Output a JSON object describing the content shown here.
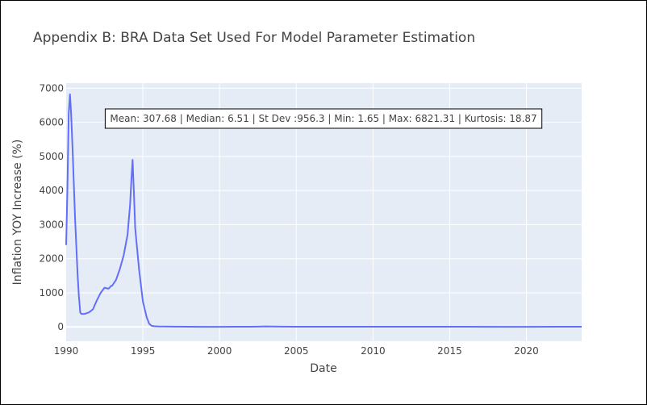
{
  "chart_data": {
    "type": "line",
    "title": "Appendix B: BRA Data Set Used For Model Parameter Estimation",
    "xlabel": "Date",
    "ylabel": "Inflation YOY Increase (%)",
    "xlim": [
      1990.0,
      2023.6
    ],
    "ylim": [
      -420,
      7150
    ],
    "x_ticks": [
      1990,
      1995,
      2000,
      2005,
      2010,
      2015,
      2020
    ],
    "y_ticks": [
      0,
      1000,
      2000,
      3000,
      4000,
      5000,
      6000,
      7000
    ],
    "grid": true,
    "colors": {
      "series": "#636efa",
      "plot_bg": "#e5ecf6",
      "grid": "#ffffff"
    },
    "annotation": "Mean: 307.68 | Median: 6.51 | St Dev :956.3 | Min: 1.65 | Max: 6821.31 | Kurtosis: 18.87",
    "series": [
      {
        "x": [
          1990.0,
          1990.08,
          1990.17,
          1990.25,
          1990.33,
          1990.42,
          1990.5,
          1990.58,
          1990.67,
          1990.75,
          1990.83,
          1990.92,
          1991.0,
          1991.08,
          1991.17,
          1991.25,
          1991.5,
          1991.75,
          1992.0,
          1992.25,
          1992.5,
          1992.75,
          1992.83,
          1992.92,
          1993.0,
          1993.25,
          1993.5,
          1993.75,
          1994.0,
          1994.17,
          1994.25,
          1994.33,
          1994.42,
          1994.5,
          1994.75,
          1995.0,
          1995.25,
          1995.42,
          1995.58,
          1995.75,
          1996.0,
          1997.0,
          1998.0,
          1999.0,
          2000.0,
          2001.0,
          2002.0,
          2002.5,
          2003.0,
          2003.5,
          2004.0,
          2005.0,
          2006.0,
          2008.0,
          2010.0,
          2012.0,
          2014.0,
          2016.0,
          2018.0,
          2020.0,
          2022.0,
          2023.6
        ],
        "values": [
          2400,
          4000,
          6300,
          6821.31,
          6200,
          5200,
          4200,
          3200,
          2300,
          1500,
          900,
          420,
          380,
          380,
          380,
          390,
          430,
          520,
          780,
          1000,
          1150,
          1120,
          1150,
          1200,
          1210,
          1380,
          1700,
          2100,
          2700,
          3600,
          4300,
          4900,
          3900,
          2900,
          1700,
          750,
          280,
          90,
          30,
          20,
          15,
          10,
          5,
          2,
          3,
          6,
          5,
          10,
          15,
          12,
          8,
          6,
          5,
          6,
          6,
          6,
          7,
          6,
          4,
          3,
          6,
          5
        ]
      }
    ]
  }
}
